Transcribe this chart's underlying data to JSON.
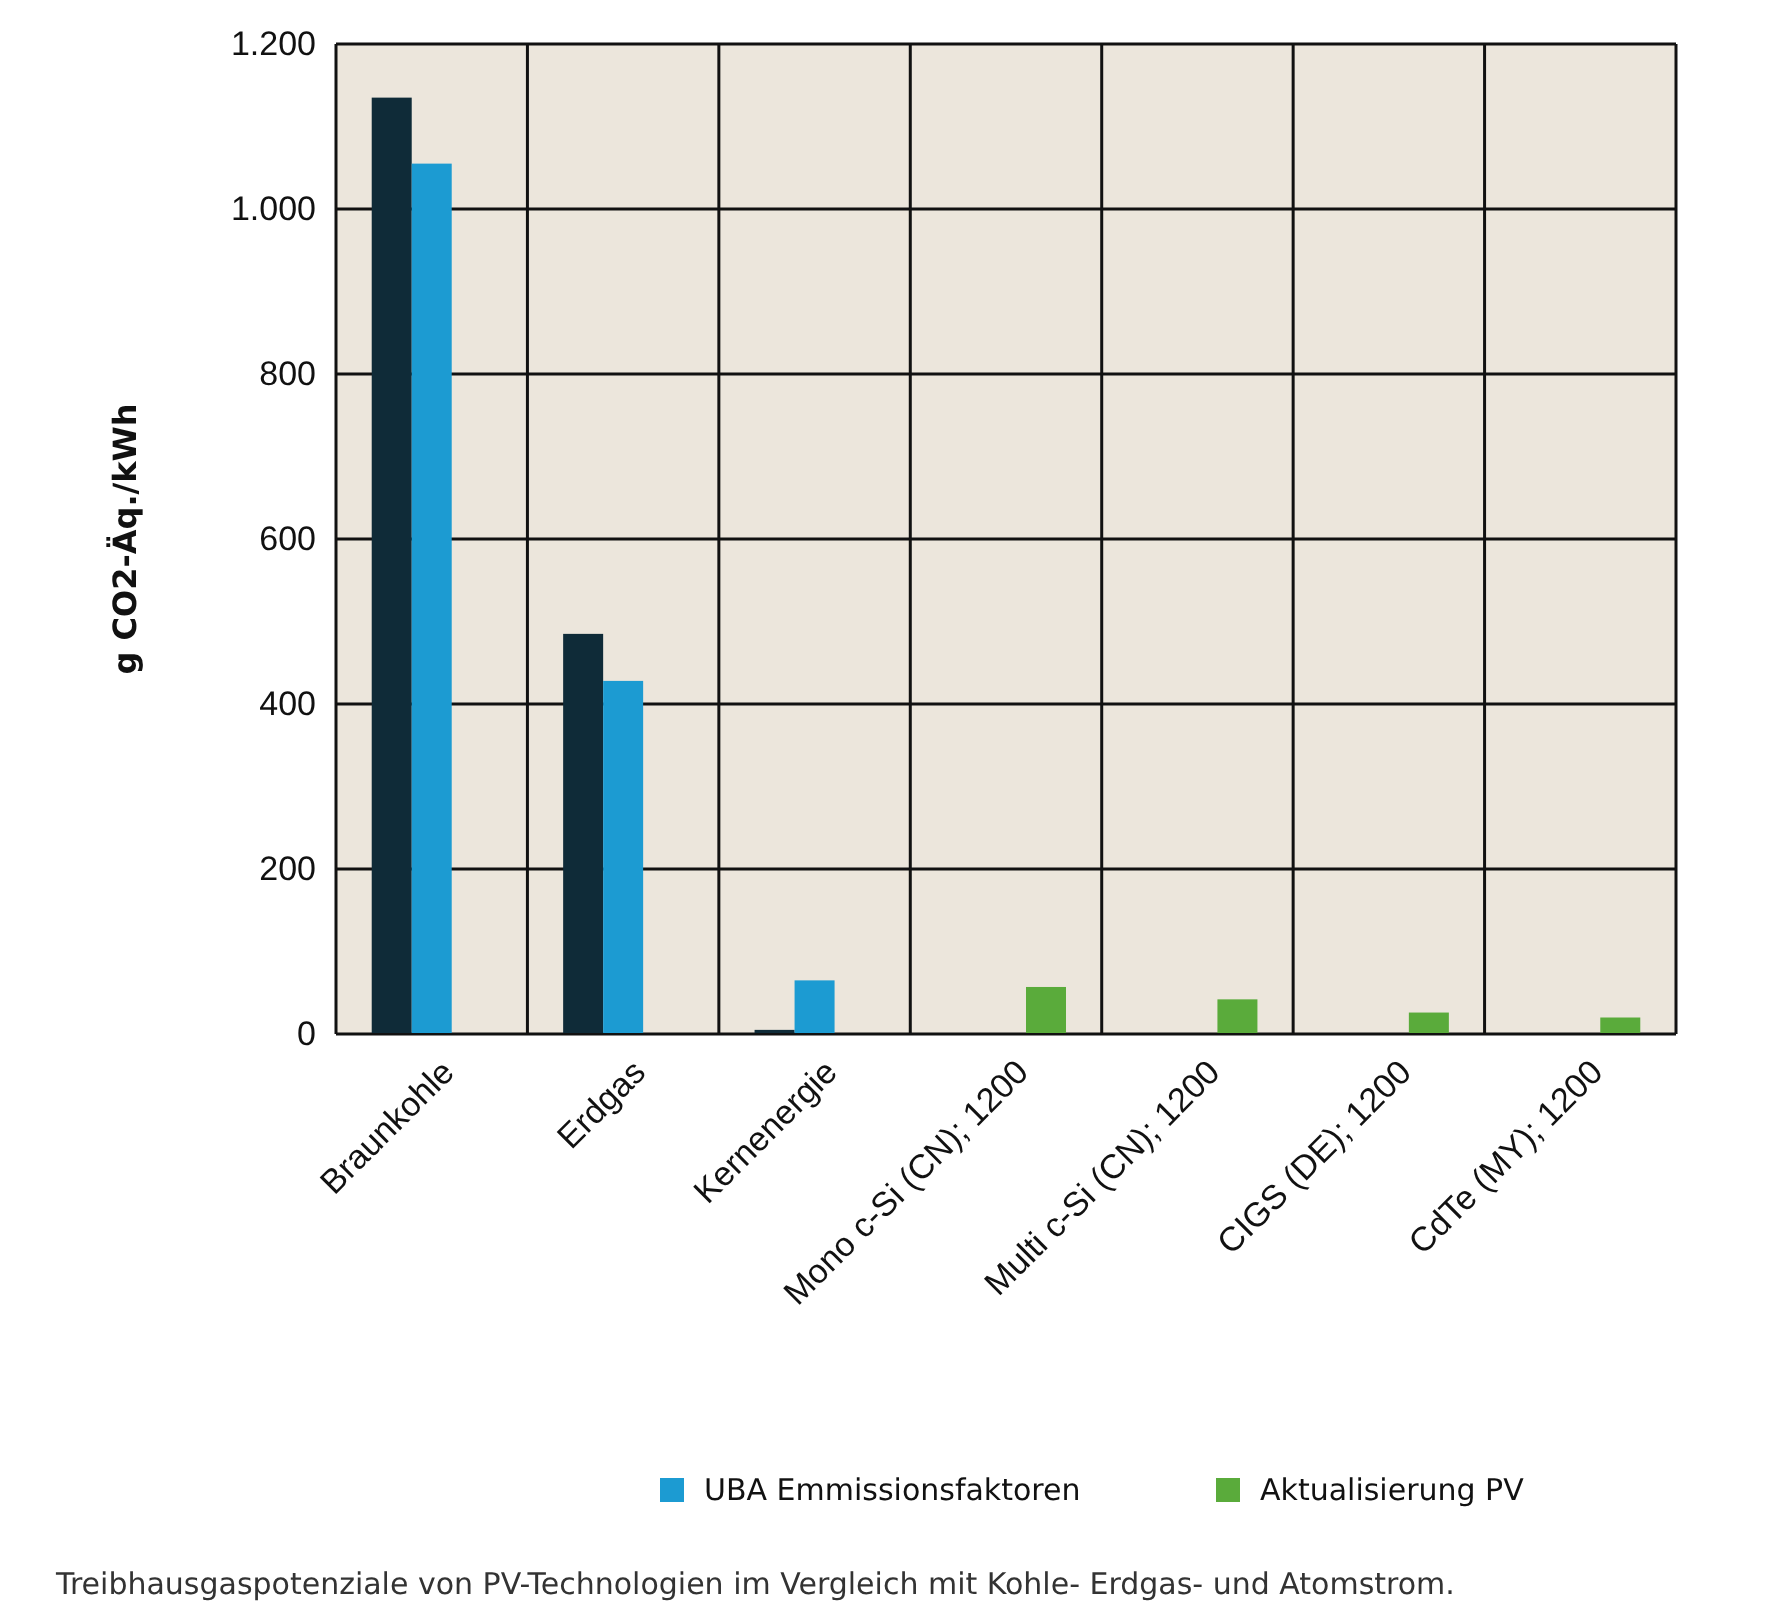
{
  "chart_data": {
    "type": "bar",
    "ylabel": "g CO2-Äq./kWh",
    "categories": [
      "Braunkohle",
      "Erdgas",
      "Kernenergie",
      "Mono c-Si (CN); 1200",
      "Multi c-Si (CN); 1200",
      "CIGS (DE); 1200",
      "CdTe (MY); 1200"
    ],
    "series": [
      {
        "color": "#0f2b38",
        "values": [
          1135,
          485,
          5,
          null,
          null,
          null,
          null
        ]
      },
      {
        "name": "UBA Emmissionsfaktoren",
        "color": "#1c9bd2",
        "values": [
          1055,
          428,
          65,
          null,
          null,
          null,
          null
        ]
      },
      {
        "name": "Aktualisierung PV",
        "color": "#5aab3b",
        "values": [
          null,
          null,
          null,
          57,
          42,
          26,
          20
        ]
      }
    ],
    "ylim": [
      0,
      1200
    ],
    "yticks": [
      0,
      200,
      400,
      600,
      800,
      {
        "value": 1000,
        "label": "1.000"
      },
      {
        "value": 1200,
        "label": "1.200"
      }
    ],
    "grid": true,
    "legend": "bottom",
    "annotations": [
      "Treibhausgaspotenziale von PV-Technologien im Vergleich mit Kohle- Erdgas- und Atomstrom."
    ]
  }
}
